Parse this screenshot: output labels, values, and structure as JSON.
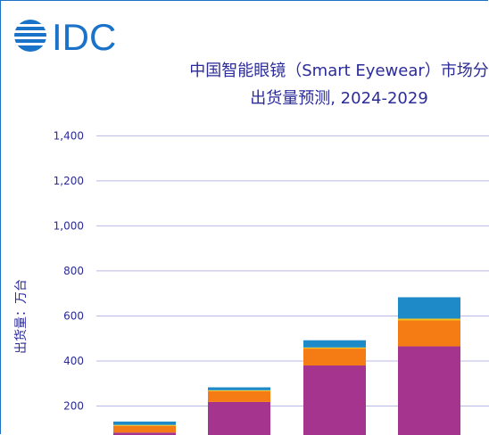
{
  "brand": {
    "logo_text": "IDC",
    "color": "#1a73c8"
  },
  "chart_data": {
    "type": "bar",
    "stacked": true,
    "title": "中国智能眼镜（Smart Eyewear）市场分",
    "subtitle": "出货量预测, 2024-2029",
    "ylabel": "出货量：万台",
    "ylim": [
      0,
      1400
    ],
    "yticks": [
      "1,400",
      "1,200",
      "1,000",
      "800",
      "600",
      "400",
      "200"
    ],
    "ytick_values": [
      1400,
      1200,
      1000,
      800,
      600,
      400,
      200
    ],
    "grid": true,
    "series": [
      {
        "color": "#a5348f",
        "values": [
          82,
          218,
          380,
          465
        ]
      },
      {
        "color": "#f57b14",
        "values": [
          30,
          48,
          75,
          115
        ]
      },
      {
        "color": "#f2c21b",
        "values": [
          4,
          4,
          5,
          8
        ]
      },
      {
        "color": "#1e8ac8",
        "values": [
          15,
          13,
          32,
          95
        ]
      }
    ]
  }
}
